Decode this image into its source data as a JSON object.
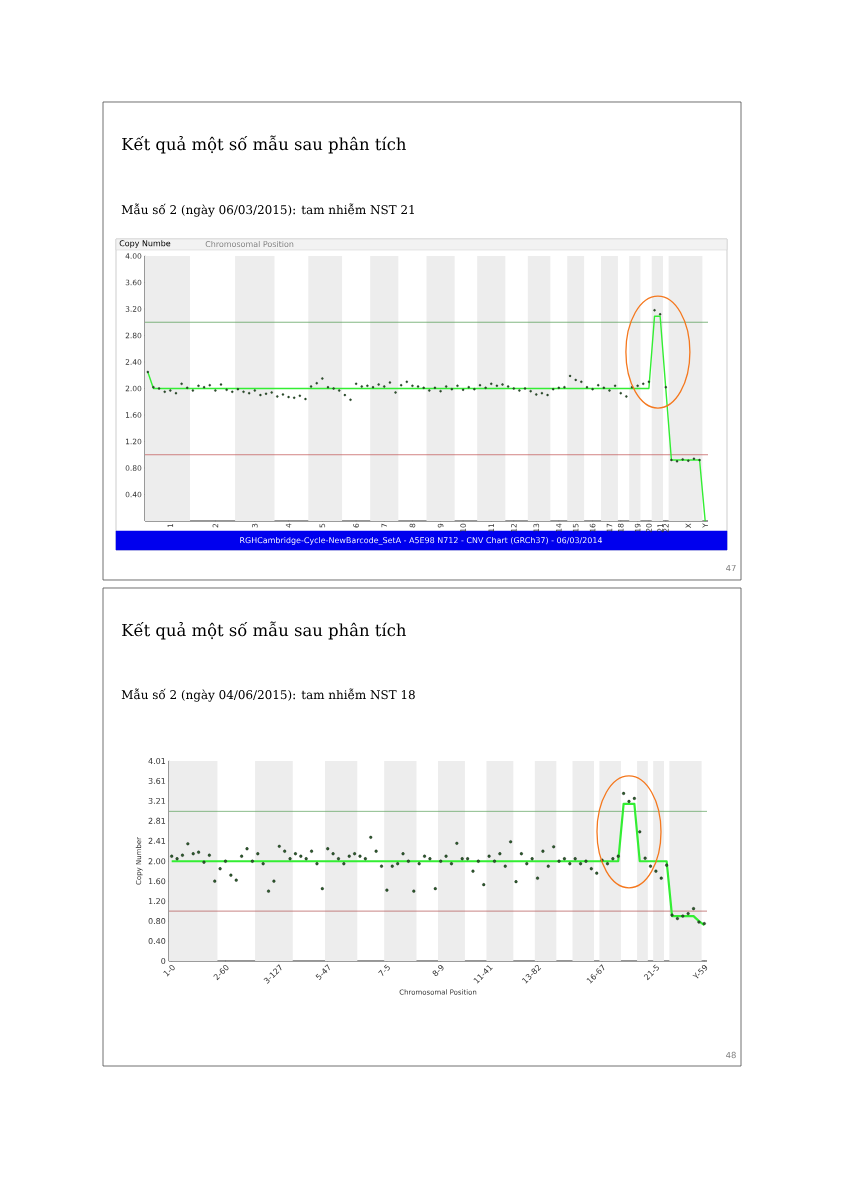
{
  "chart_data": [
    {
      "type": "scatter",
      "title": "Kết quả một số mẫu sau phân tích",
      "subtitle": "Mẫu số 2 (ngày 06/03/2015): tam nhiễm NST 21",
      "annotations": [
        "Copy Numbe",
        "Chromosomal Position",
        "RGHCambridge-Cycle-NewBarcode_SetA - A5E98 N712 - CNV Chart (GRCh37) - 06/03/2014",
        "47"
      ],
      "categories": [
        null,
        null,
        null,
        null,
        "1",
        null,
        null,
        null,
        null,
        null,
        null,
        null,
        "2",
        null,
        null,
        null,
        null,
        null,
        null,
        "3",
        null,
        null,
        null,
        null,
        null,
        "4",
        null,
        null,
        null,
        null,
        null,
        "5",
        null,
        null,
        null,
        null,
        null,
        "6",
        null,
        null,
        null,
        null,
        "7",
        null,
        null,
        null,
        null,
        "8",
        null,
        null,
        null,
        null,
        "9",
        null,
        null,
        null,
        "10",
        null,
        null,
        null,
        null,
        "11",
        null,
        null,
        null,
        "12",
        null,
        null,
        null,
        "13",
        null,
        null,
        null,
        "14",
        null,
        null,
        "15",
        null,
        null,
        "16",
        null,
        null,
        "17",
        null,
        "18",
        null,
        null,
        "19",
        null,
        "20",
        null,
        "21",
        "22",
        null,
        null,
        null,
        "X",
        null,
        null,
        "Y"
      ],
      "ylim": [
        0,
        4
      ],
      "yticks": [
        {
          "value": 0.4,
          "label": "0.40"
        },
        {
          "value": 0.8,
          "label": "0.80"
        },
        {
          "value": 1.2,
          "label": "1.20"
        },
        {
          "value": 1.6,
          "label": "1.60"
        },
        {
          "value": 2,
          "label": "2.00"
        },
        {
          "value": 2.4,
          "label": "2.40"
        },
        {
          "value": 2.8,
          "label": "2.80"
        },
        {
          "value": 3.2,
          "label": "3.20"
        },
        {
          "value": 3.6,
          "label": "3.60"
        },
        {
          "value": 4,
          "label": "4.00"
        }
      ],
      "ref_lines": [
        {
          "axis": "y",
          "value": 3,
          "color": "#4d994d"
        },
        {
          "axis": "y",
          "value": 1,
          "color": "#c05050"
        }
      ],
      "series": [
        {
          "color": "#2e5e2e",
          "marker": "circle",
          "values": [
            2.25,
            2.02,
            2.0,
            1.95,
            1.97,
            1.93,
            2.07,
            2.01,
            1.97,
            2.04,
            2.02,
            2.05,
            1.97,
            2.06,
            1.98,
            1.95,
            1.99,
            1.95,
            1.93,
            1.97,
            1.9,
            1.92,
            1.94,
            1.88,
            1.91,
            1.87,
            1.86,
            1.89,
            1.84,
            2.03,
            2.08,
            2.15,
            2.02,
            2.0,
            1.97,
            1.9,
            1.83,
            2.07,
            2.03,
            2.04,
            2.02,
            2.06,
            2.03,
            2.09,
            1.94,
            2.05,
            2.1,
            2.04,
            2.03,
            2.01,
            1.97,
            2.01,
            1.96,
            2.03,
            1.99,
            2.04,
            1.98,
            2.02,
            1.99,
            2.05,
            2.01,
            2.07,
            2.04,
            2.06,
            2.03,
            2.0,
            1.97,
            2.0,
            1.96,
            1.91,
            1.93,
            1.9,
            1.99,
            2.01,
            2.02,
            2.19,
            2.13,
            2.1,
            2.02,
            1.99,
            2.05,
            2.01,
            1.97,
            2.04,
            1.93,
            1.88,
            2.02,
            2.04,
            2.07,
            2.1,
            3.18,
            3.12,
            2.02,
            0.92,
            0.9,
            0.93,
            0.91,
            0.94,
            0.92,
            null
          ]
        },
        {
          "type": "line",
          "color": "#33ee33",
          "marker": "none",
          "values": [
            2.25,
            2.0,
            2.0,
            2.0,
            2.0,
            2.0,
            2.0,
            2.0,
            2.0,
            2.0,
            2.0,
            2.0,
            2.0,
            2.0,
            2.0,
            2.0,
            2.0,
            2.0,
            2.0,
            2.0,
            2.0,
            2.0,
            2.0,
            2.0,
            2.0,
            2.0,
            2.0,
            2.0,
            2.0,
            2.0,
            2.0,
            2.0,
            2.0,
            2.0,
            2.0,
            2.0,
            2.0,
            2.0,
            2.0,
            2.0,
            2.0,
            2.0,
            2.0,
            2.0,
            2.0,
            2.0,
            2.0,
            2.0,
            2.0,
            2.0,
            2.0,
            2.0,
            2.0,
            2.0,
            2.0,
            2.0,
            2.0,
            2.0,
            2.0,
            2.0,
            2.0,
            2.0,
            2.0,
            2.0,
            2.0,
            2.0,
            2.0,
            2.0,
            2.0,
            2.0,
            2.0,
            2.0,
            2.0,
            2.0,
            2.0,
            2.0,
            2.0,
            2.0,
            2.0,
            2.0,
            2.0,
            2.0,
            2.0,
            2.0,
            2.0,
            2.0,
            2.0,
            2.0,
            2.0,
            2.0,
            3.09,
            3.09,
            2.0,
            0.92,
            0.92,
            0.92,
            0.92,
            0.92,
            0.92,
            0
          ]
        }
      ]
    },
    {
      "type": "scatter",
      "title": "Kết quả một số mẫu sau phân tích",
      "subtitle": "Mẫu số 2 (ngày 04/06/2015): tam nhiễm NST 18",
      "xlabel": "Chromosomal Position",
      "ylabel": "Copy Number",
      "annotations": [
        "48"
      ],
      "categories": [
        "1-0",
        null,
        null,
        null,
        null,
        null,
        null,
        null,
        null,
        null,
        "2-60",
        null,
        null,
        null,
        null,
        null,
        null,
        null,
        null,
        null,
        "3-127",
        null,
        null,
        null,
        null,
        null,
        null,
        null,
        null,
        "5-47",
        null,
        null,
        null,
        null,
        null,
        null,
        null,
        null,
        null,
        null,
        "7-5",
        null,
        null,
        null,
        null,
        null,
        null,
        null,
        null,
        null,
        "8-9",
        null,
        null,
        null,
        null,
        null,
        null,
        null,
        null,
        "11-41",
        null,
        null,
        null,
        null,
        null,
        null,
        null,
        null,
        "13-82",
        null,
        null,
        null,
        null,
        null,
        null,
        null,
        null,
        null,
        null,
        null,
        "16-67",
        null,
        null,
        null,
        null,
        null,
        null,
        null,
        null,
        null,
        "21-5",
        null,
        null,
        null,
        null,
        null,
        null,
        null,
        null,
        "Y-59"
      ],
      "ylim": [
        0,
        4.01
      ],
      "yticks": [
        0,
        {
          "value": 0.4,
          "label": "0.40"
        },
        {
          "value": 0.8,
          "label": "0.80"
        },
        {
          "value": 1.2,
          "label": "1.20"
        },
        {
          "value": 1.6,
          "label": "1.60"
        },
        {
          "value": 2,
          "label": "2.00"
        },
        2.41,
        2.81,
        3.21,
        3.61,
        4.01
      ],
      "ref_lines": [
        {
          "axis": "y",
          "value": 3,
          "color": "#5aa05a"
        },
        {
          "axis": "y",
          "value": 1,
          "color": "#b05050"
        }
      ],
      "series": [
        {
          "color": "#2e5e2e",
          "marker": "circle",
          "values": [
            2.1,
            2.05,
            2.12,
            2.35,
            2.15,
            2.18,
            1.98,
            2.12,
            1.6,
            1.85,
            2.0,
            1.72,
            1.62,
            2.1,
            2.25,
            2.0,
            2.15,
            1.95,
            1.4,
            1.6,
            2.3,
            2.2,
            2.05,
            2.15,
            2.1,
            2.05,
            2.2,
            1.95,
            1.45,
            2.25,
            2.15,
            2.05,
            1.95,
            2.1,
            2.15,
            2.1,
            2.05,
            2.48,
            2.2,
            1.9,
            1.42,
            1.9,
            1.95,
            2.15,
            2.0,
            1.4,
            1.95,
            2.1,
            2.05,
            1.45,
            2.0,
            2.1,
            1.95,
            2.36,
            2.05,
            2.05,
            1.8,
            2.0,
            1.53,
            2.1,
            2.0,
            2.15,
            1.9,
            2.39,
            1.59,
            2.15,
            1.95,
            2.05,
            1.66,
            2.2,
            1.9,
            2.29,
            2.0,
            2.05,
            1.95,
            2.05,
            1.95,
            2.0,
            1.85,
            1.76,
            2.02,
            1.95,
            2.05,
            2.1,
            3.36,
            3.2,
            3.26,
            2.59,
            2.06,
            1.9,
            1.8,
            1.66,
            1.92,
            0.92,
            0.85,
            0.9,
            0.95,
            1.05,
            0.78,
            0.75
          ]
        },
        {
          "type": "line",
          "color": "#33ee33",
          "marker": "none",
          "values": [
            2.0,
            2.0,
            2.0,
            2.0,
            2.0,
            2.0,
            2.0,
            2.0,
            2.0,
            2.0,
            2.0,
            2.0,
            2.0,
            2.0,
            2.0,
            2.0,
            2.0,
            2.0,
            2.0,
            2.0,
            2.0,
            2.0,
            2.0,
            2.0,
            2.0,
            2.0,
            2.0,
            2.0,
            2.0,
            2.0,
            2.0,
            2.0,
            2.0,
            2.0,
            2.0,
            2.0,
            2.0,
            2.0,
            2.0,
            2.0,
            2.0,
            2.0,
            2.0,
            2.0,
            2.0,
            2.0,
            2.0,
            2.0,
            2.0,
            2.0,
            2.0,
            2.0,
            2.0,
            2.0,
            2.0,
            2.0,
            2.0,
            2.0,
            2.0,
            2.0,
            2.0,
            2.0,
            2.0,
            2.0,
            2.0,
            2.0,
            2.0,
            2.0,
            2.0,
            2.0,
            2.0,
            2.0,
            2.0,
            2.0,
            2.0,
            2.0,
            2.0,
            2.0,
            2.0,
            2.0,
            2.0,
            2.0,
            2.0,
            2.0,
            3.15,
            3.15,
            3.15,
            2.0,
            2.0,
            2.0,
            2.0,
            2.0,
            2.0,
            0.9,
            0.9,
            0.9,
            0.9,
            0.9,
            0.8,
            0.72
          ]
        }
      ]
    }
  ]
}
